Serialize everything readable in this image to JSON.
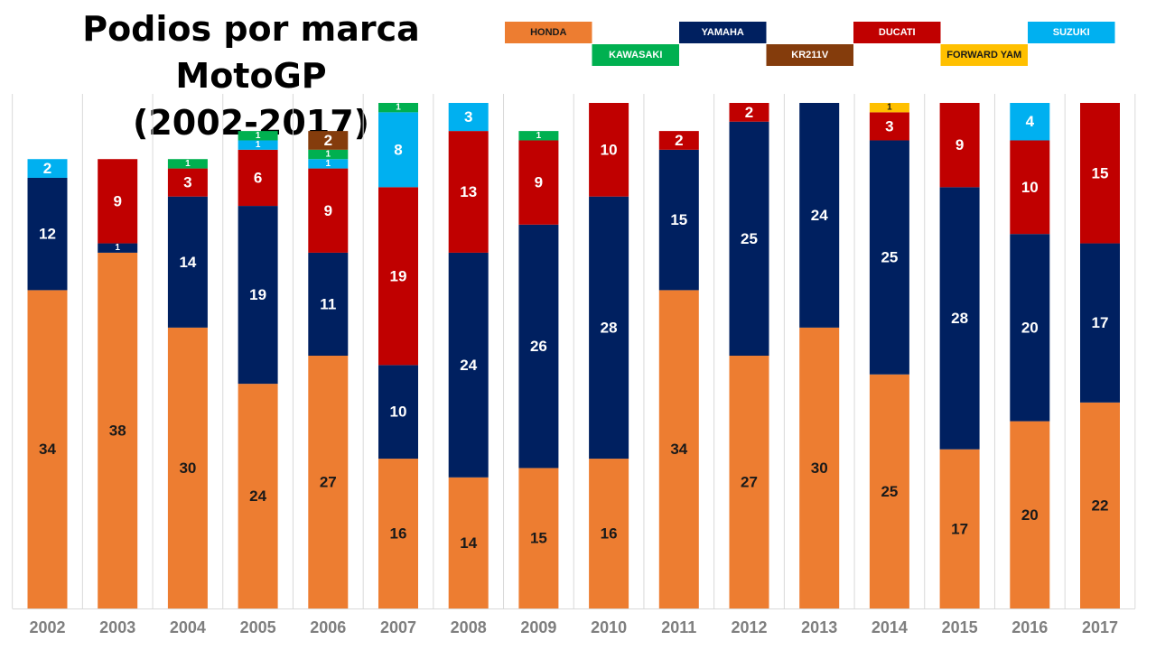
{
  "chart_data": {
    "type": "bar",
    "stacked": true,
    "title": "Podios por marca MotoGP (2002-2017)",
    "title_lines": [
      "Podios por marca MotoGP",
      "(2002-2017)"
    ],
    "categories": [
      "2002",
      "2003",
      "2004",
      "2005",
      "2006",
      "2007",
      "2008",
      "2009",
      "2010",
      "2011",
      "2012",
      "2013",
      "2014",
      "2015",
      "2016",
      "2017"
    ],
    "ylim": [
      0,
      54
    ],
    "grid": "vertical separators",
    "legend_position": "top-right",
    "series": [
      {
        "name": "HONDA",
        "color": "#ED7D31",
        "label_color": "#1a1a1a",
        "values": [
          34,
          38,
          30,
          24,
          27,
          16,
          14,
          15,
          16,
          34,
          27,
          30,
          25,
          17,
          20,
          22
        ]
      },
      {
        "name": "YAMAHA",
        "color": "#002060",
        "label_color": "#ffffff",
        "values": [
          12,
          1,
          14,
          19,
          11,
          10,
          24,
          26,
          28,
          15,
          25,
          24,
          25,
          28,
          20,
          17
        ]
      },
      {
        "name": "DUCATI",
        "color": "#C00000",
        "label_color": "#ffffff",
        "values": [
          0,
          9,
          3,
          6,
          9,
          19,
          13,
          9,
          10,
          2,
          2,
          0,
          3,
          9,
          10,
          15
        ]
      },
      {
        "name": "FORWARD YAM",
        "color": "#FFC000",
        "label_color": "#1a1a1a",
        "values": [
          0,
          0,
          0,
          0,
          0,
          0,
          0,
          0,
          0,
          0,
          0,
          0,
          1,
          0,
          0,
          0
        ]
      },
      {
        "name": "SUZUKI",
        "color": "#00B0F0",
        "label_color": "#ffffff",
        "values": [
          2,
          0,
          0,
          1,
          1,
          8,
          3,
          0,
          0,
          0,
          0,
          0,
          0,
          0,
          4,
          0
        ]
      },
      {
        "name": "KAWASAKI",
        "color": "#00B050",
        "label_color": "#ffffff",
        "values": [
          0,
          0,
          1,
          1,
          1,
          1,
          0,
          1,
          0,
          0,
          0,
          0,
          0,
          0,
          0,
          0
        ]
      },
      {
        "name": "KR211V",
        "color": "#843C0C",
        "label_color": "#ffffff",
        "values": [
          0,
          0,
          0,
          0,
          2,
          0,
          0,
          0,
          0,
          0,
          0,
          0,
          0,
          0,
          0,
          0
        ]
      }
    ],
    "legend_order": [
      "HONDA",
      "KAWASAKI",
      "YAMAHA",
      "KR211V",
      "DUCATI",
      "FORWARD YAM",
      "SUZUKI"
    ]
  }
}
